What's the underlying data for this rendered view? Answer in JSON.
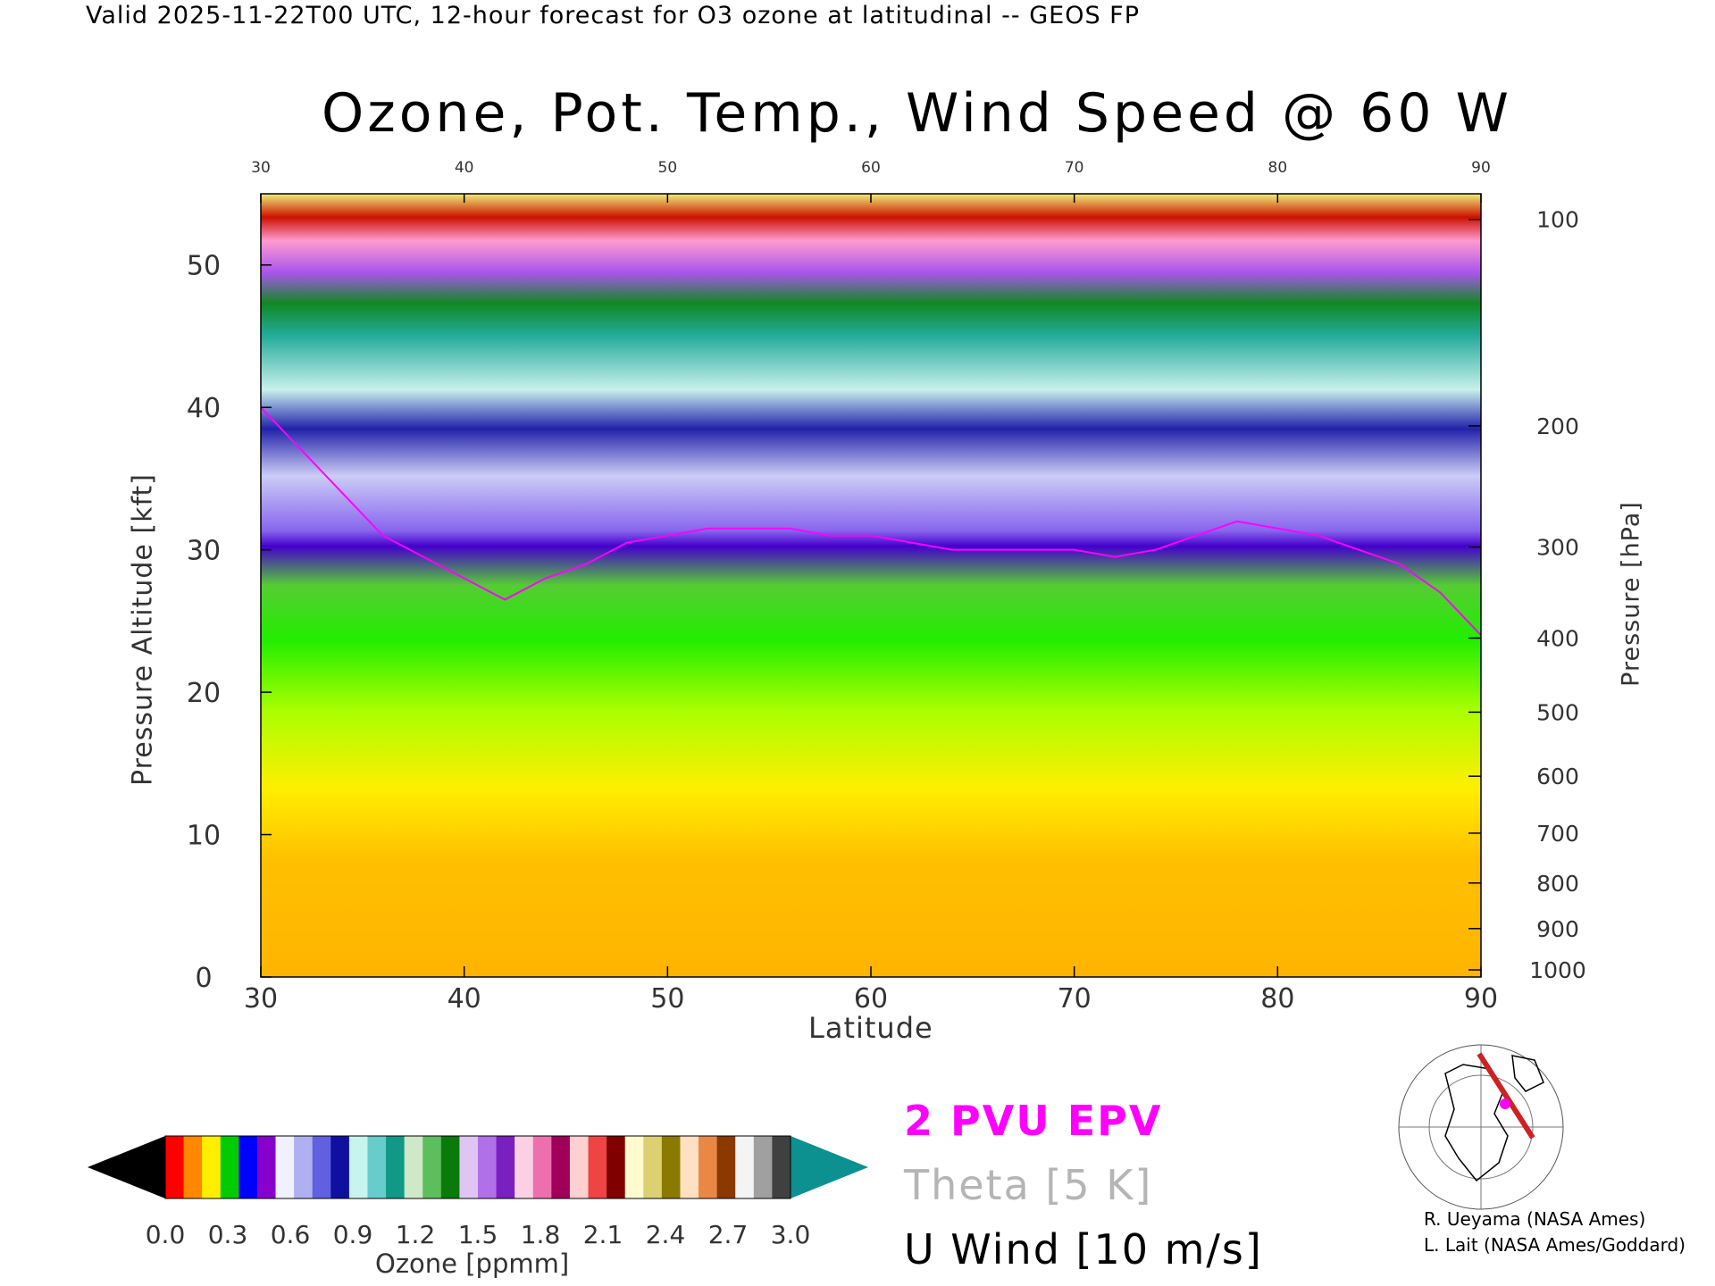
{
  "header": {
    "valid_line": "Valid 2025-11-22T00 UTC, 12-hour forecast for O3 ozone at latitudinal -- GEOS FP"
  },
  "chart_data": {
    "type": "heatmap",
    "title": "Ozone, Pot. Temp., Wind Speed @ 60 W",
    "xlabel": "Latitude",
    "ylabel_left": "Pressure Altitude [kft]",
    "ylabel_right": "Pressure [hPa]",
    "xlim": [
      30,
      90
    ],
    "ylim": [
      0,
      55
    ],
    "x_ticks": [
      30,
      40,
      50,
      60,
      70,
      80,
      90
    ],
    "top_x_ticks": [
      30,
      40,
      50,
      60,
      70,
      80,
      90
    ],
    "y_ticks": [
      0,
      10,
      20,
      30,
      40,
      50
    ],
    "right_ticks": [
      {
        "label": "100",
        "kft": 53.2
      },
      {
        "label": "200",
        "kft": 38.7
      },
      {
        "label": "300",
        "kft": 30.2
      },
      {
        "label": "400",
        "kft": 23.8
      },
      {
        "label": "500",
        "kft": 18.6
      },
      {
        "label": "600",
        "kft": 14.1
      },
      {
        "label": "700",
        "kft": 10.1
      },
      {
        "label": "800",
        "kft": 6.6
      },
      {
        "label": "900",
        "kft": 3.4
      },
      {
        "label": "1000",
        "kft": 0.5
      }
    ],
    "tropopause_kft": [
      [
        30,
        40
      ],
      [
        32,
        37
      ],
      [
        34,
        34
      ],
      [
        36,
        31
      ],
      [
        38,
        29.5
      ],
      [
        40,
        28
      ],
      [
        42,
        26.5
      ],
      [
        44,
        28
      ],
      [
        46,
        29
      ],
      [
        48,
        30.5
      ],
      [
        50,
        31
      ],
      [
        52,
        31.5
      ],
      [
        54,
        31.5
      ],
      [
        56,
        31.5
      ],
      [
        58,
        31
      ],
      [
        60,
        31
      ],
      [
        62,
        30.5
      ],
      [
        64,
        30
      ],
      [
        66,
        30
      ],
      [
        68,
        30
      ],
      [
        70,
        30
      ],
      [
        72,
        29.5
      ],
      [
        74,
        30
      ],
      [
        76,
        31
      ],
      [
        78,
        32
      ],
      [
        80,
        31.5
      ],
      [
        82,
        31
      ],
      [
        84,
        30
      ],
      [
        86,
        29
      ],
      [
        88,
        27
      ],
      [
        90,
        24
      ]
    ],
    "colorbar": {
      "label": "Ozone [ppmm]",
      "ticks": [
        "0.0",
        "0.3",
        "0.6",
        "0.9",
        "1.2",
        "1.5",
        "1.8",
        "2.1",
        "2.4",
        "2.7",
        "3.0"
      ],
      "range": [
        0.0,
        3.0
      ]
    },
    "legend": {
      "epv": "2 PVU EPV",
      "theta": "Theta [5 K]",
      "wind": "U Wind [10 m/s]"
    }
  },
  "credits": {
    "line1": "R. Ueyama (NASA Ames)",
    "line2": "L. Lait (NASA Ames/Goddard)"
  },
  "colors": {
    "epv": "#ff00ff",
    "theta": "#b5b5b5",
    "terrain": "#bdbdbd",
    "section_line": "#cc2222"
  }
}
